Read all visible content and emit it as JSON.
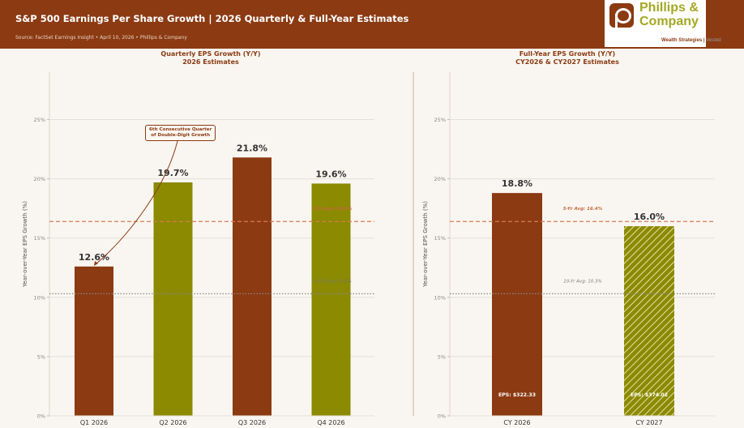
{
  "header": {
    "title": "S&P 500 Earnings Per Share Growth  |  2026 Quarterly & Full-Year Estimates",
    "subtitle": "Source: FactSet Earnings Insight  •  April 10, 2026  •  Phillips & Company",
    "brand_color": "#8b3a12"
  },
  "logo": {
    "name_line1": "Phillips &",
    "name_line2": "Company",
    "tagline": "Wealth Strategies",
    "tagline_suffix": "Vested",
    "icon": "phillips-p-logo-icon"
  },
  "annotation": {
    "line1": "6th Consecutive Quarter",
    "line2": "of Double-Digit Growth"
  },
  "chart_data": [
    {
      "type": "bar",
      "title": "Quarterly EPS Growth (Y/Y)",
      "subtitle": "2026 Estimates",
      "xlabel": "",
      "ylabel": "Year-over-Year EPS Growth (%)",
      "categories": [
        "Q1 2026",
        "Q2 2026",
        "Q3 2026",
        "Q4 2026"
      ],
      "values": [
        12.6,
        19.7,
        21.8,
        19.6
      ],
      "data_labels": [
        "12.6%",
        "19.7%",
        "21.8%",
        "19.6%"
      ],
      "colors": [
        "#8b3a12",
        "#8b8a00",
        "#8b3a12",
        "#8b8a00"
      ],
      "ylim": [
        0,
        29
      ],
      "yticks": [
        0,
        5,
        10,
        15,
        20,
        25
      ],
      "ytick_labels": [
        "0%",
        "5%",
        "10%",
        "15%",
        "20%",
        "25%"
      ],
      "grid": true,
      "reference_lines": [
        {
          "label": "5-Yr Avg: 16.4%",
          "value": 16.4,
          "style": "dashed",
          "color": "#d97a50"
        },
        {
          "label": "10-Yr Avg: 10.3%",
          "value": 10.3,
          "style": "dotted",
          "color": "#888888"
        }
      ]
    },
    {
      "type": "bar",
      "title": "Full-Year EPS Growth (Y/Y)",
      "subtitle": "CY2026 & CY2027 Estimates",
      "xlabel": "",
      "ylabel": "Year-over-Year EPS Growth (%)",
      "categories": [
        "CY 2026",
        "CY 2027"
      ],
      "values": [
        18.8,
        16.0
      ],
      "data_labels": [
        "18.8%",
        "16.0%"
      ],
      "eps_labels": [
        "EPS: $322.33",
        "EPS: $374.02"
      ],
      "colors": [
        "#8b3a12",
        "#8b8a00"
      ],
      "hatched": [
        false,
        true
      ],
      "ylim": [
        0,
        29
      ],
      "yticks": [
        0,
        5,
        10,
        15,
        20,
        25
      ],
      "ytick_labels": [
        "0%",
        "5%",
        "10%",
        "15%",
        "20%",
        "25%"
      ],
      "grid": true,
      "reference_lines": [
        {
          "label": "5-Yr Avg: 16.4%",
          "value": 16.4,
          "style": "dashed",
          "color": "#d97a50"
        },
        {
          "label": "10-Yr Avg: 10.3%",
          "value": 10.3,
          "style": "dotted",
          "color": "#888888"
        }
      ]
    }
  ]
}
